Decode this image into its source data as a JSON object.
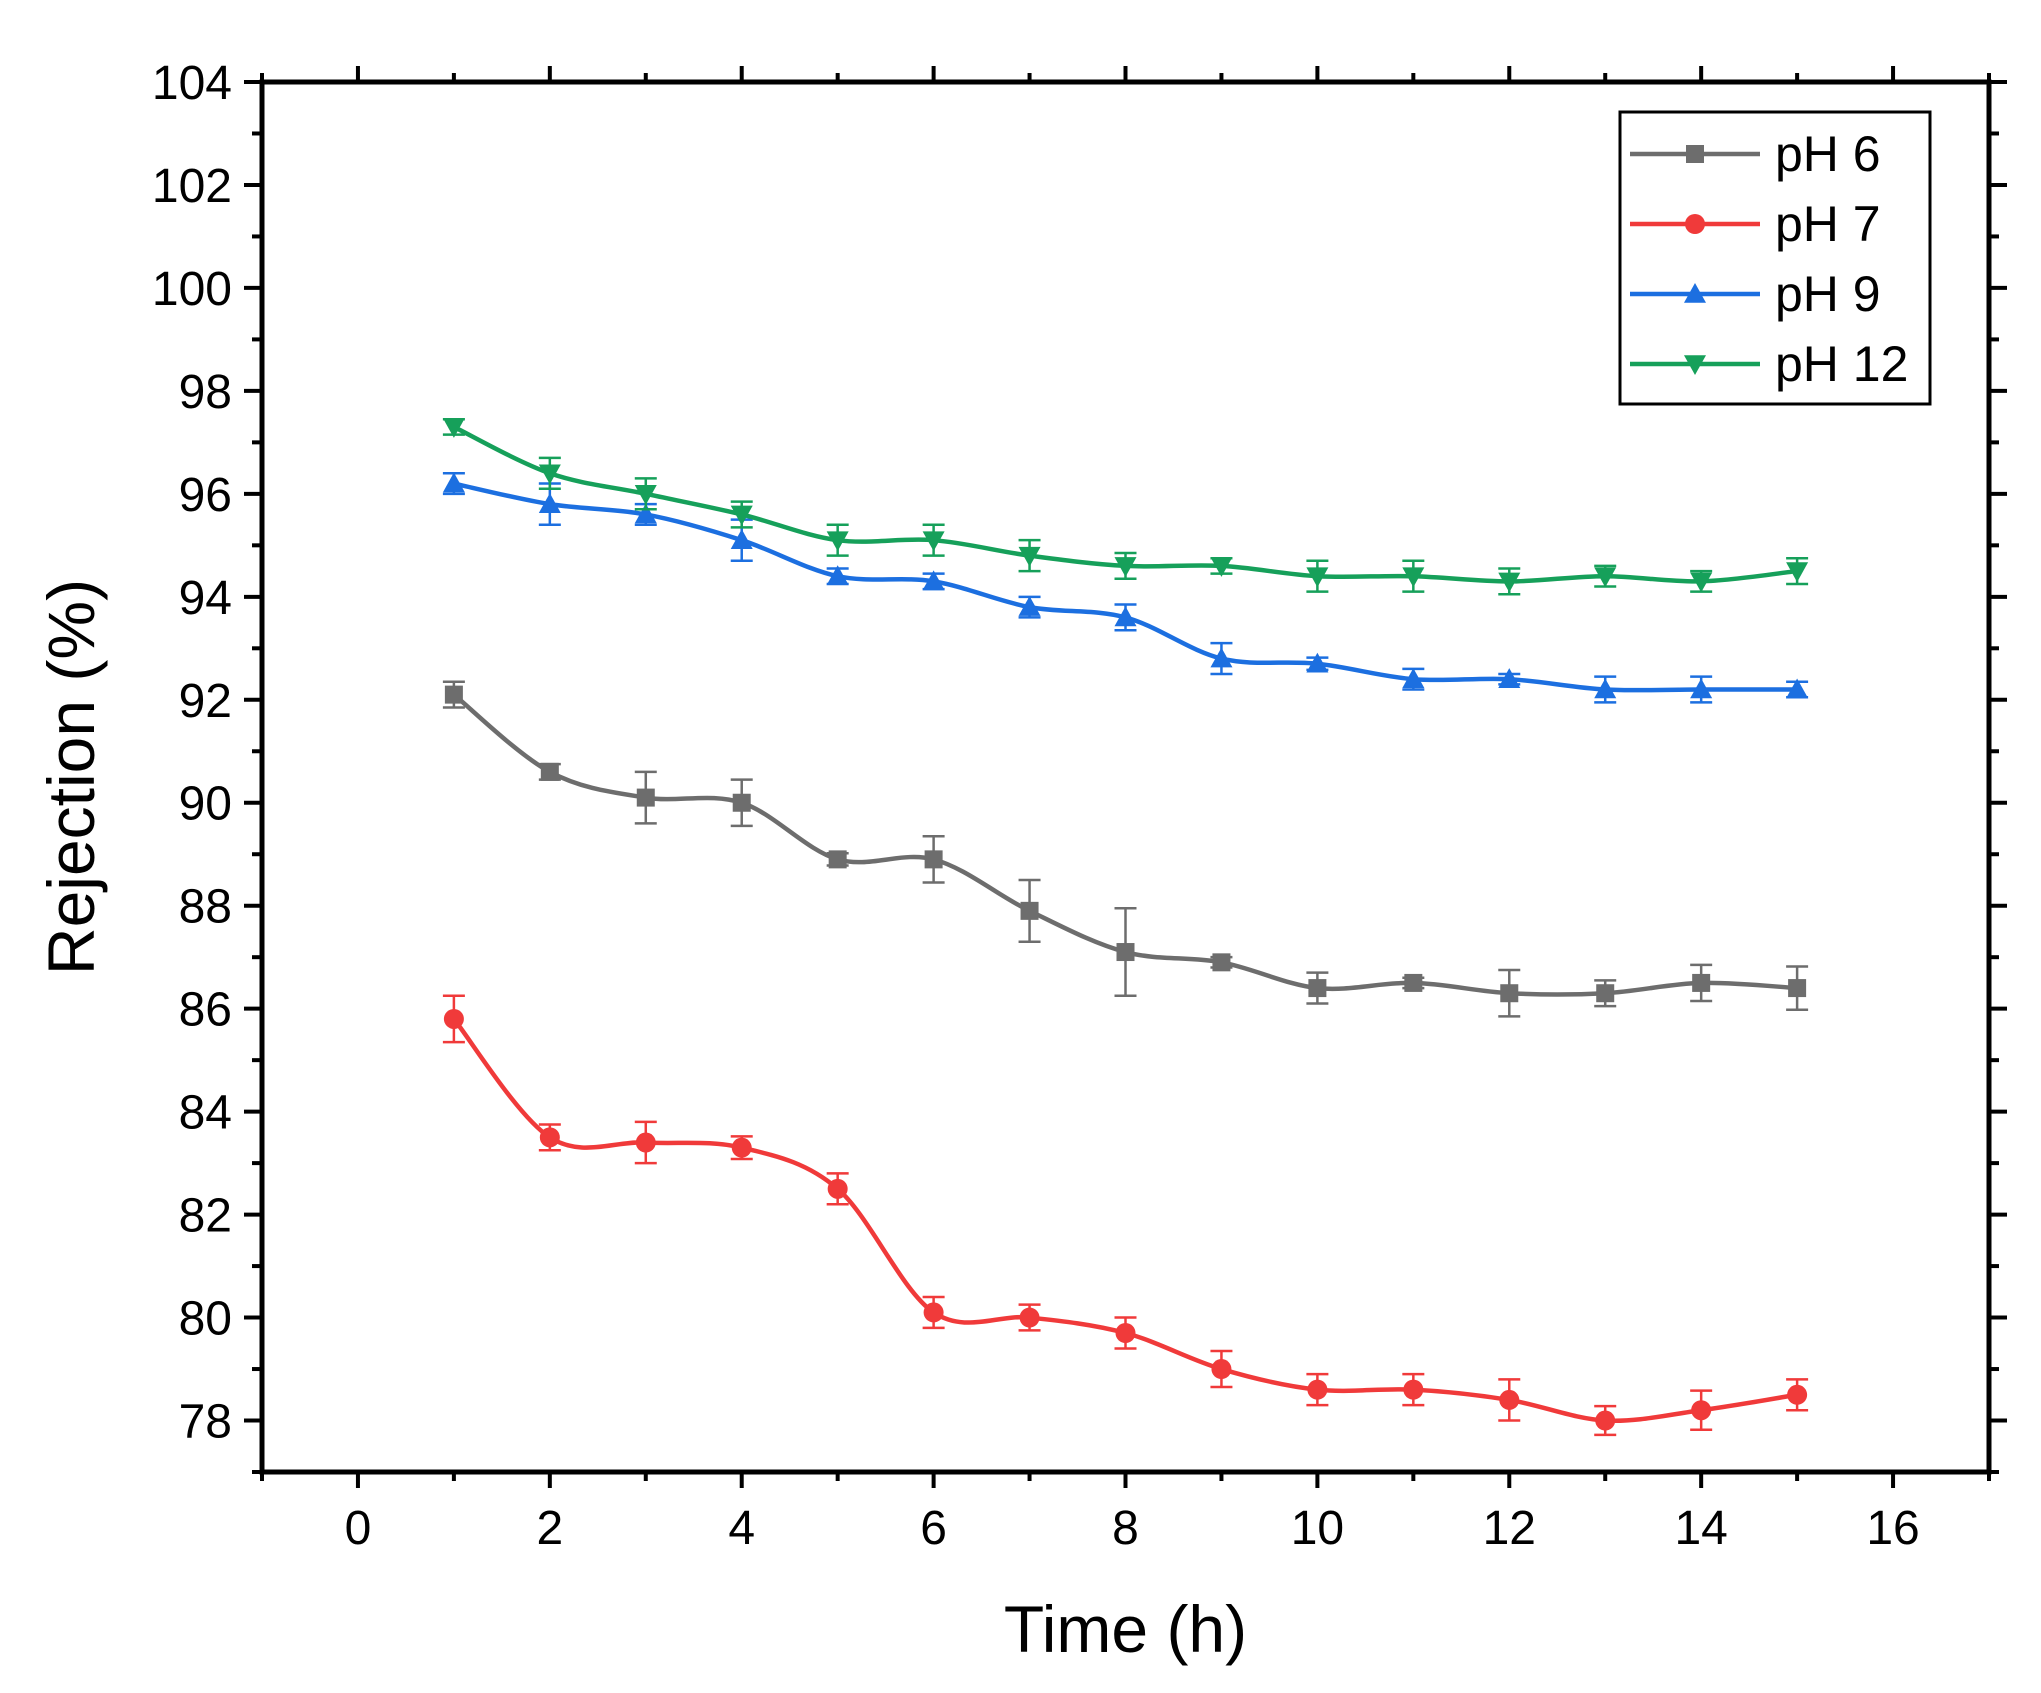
{
  "chart_data": {
    "type": "line",
    "title": "",
    "xlabel": "Time (h)",
    "ylabel": "Rejection (%)",
    "xlim": [
      -1,
      17
    ],
    "ylim": [
      77,
      104
    ],
    "xticks": [
      0,
      2,
      4,
      6,
      8,
      10,
      12,
      14,
      16
    ],
    "yticks": [
      78,
      80,
      82,
      84,
      86,
      88,
      90,
      92,
      94,
      96,
      98,
      100,
      102,
      104
    ],
    "grid": false,
    "legend_position": "top-right",
    "x": [
      1,
      2,
      3,
      4,
      5,
      6,
      7,
      8,
      9,
      10,
      11,
      12,
      13,
      14,
      15
    ],
    "series": [
      {
        "name": "pH 6",
        "color": "#6d6d6d",
        "marker": "square",
        "values": [
          92.1,
          90.6,
          90.1,
          90.0,
          88.9,
          88.9,
          87.9,
          87.1,
          86.9,
          86.4,
          86.5,
          86.3,
          86.3,
          86.5,
          86.4
        ],
        "errors": [
          0.25,
          0.15,
          0.5,
          0.45,
          0.12,
          0.45,
          0.6,
          0.85,
          0.1,
          0.3,
          0.1,
          0.45,
          0.25,
          0.35,
          0.42
        ]
      },
      {
        "name": "pH 7",
        "color": "#f03a3a",
        "marker": "circle",
        "values": [
          85.8,
          83.5,
          83.4,
          83.3,
          82.5,
          80.1,
          80.0,
          79.7,
          79.0,
          78.6,
          78.6,
          78.4,
          78.0,
          78.2,
          78.5
        ],
        "errors": [
          0.45,
          0.25,
          0.4,
          0.22,
          0.3,
          0.3,
          0.25,
          0.3,
          0.35,
          0.3,
          0.3,
          0.4,
          0.28,
          0.38,
          0.3
        ]
      },
      {
        "name": "pH 9",
        "color": "#1c6fe0",
        "marker": "triangle-up",
        "values": [
          96.2,
          95.8,
          95.6,
          95.1,
          94.4,
          94.3,
          93.8,
          93.6,
          92.8,
          92.7,
          92.4,
          92.4,
          92.2,
          92.2,
          92.2
        ],
        "errors": [
          0.2,
          0.4,
          0.2,
          0.4,
          0.15,
          0.15,
          0.2,
          0.25,
          0.3,
          0.12,
          0.2,
          0.1,
          0.25,
          0.25,
          0.15
        ]
      },
      {
        "name": "pH 12",
        "color": "#16a05a",
        "marker": "triangle-down",
        "values": [
          97.3,
          96.4,
          96.0,
          95.6,
          95.1,
          95.1,
          94.8,
          94.6,
          94.6,
          94.4,
          94.4,
          94.3,
          94.4,
          94.3,
          94.5
        ],
        "errors": [
          0.15,
          0.3,
          0.3,
          0.25,
          0.3,
          0.3,
          0.3,
          0.25,
          0.15,
          0.3,
          0.3,
          0.25,
          0.2,
          0.2,
          0.25
        ]
      }
    ]
  }
}
